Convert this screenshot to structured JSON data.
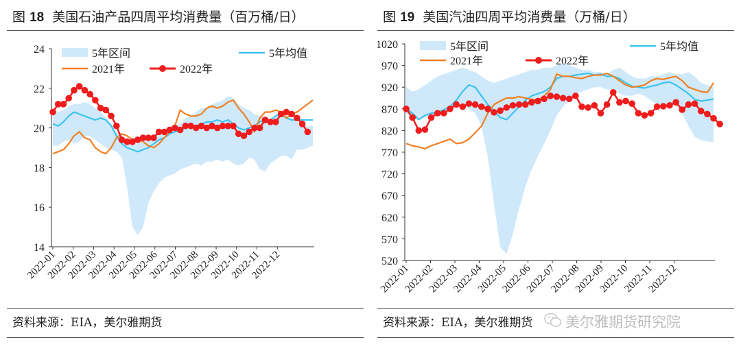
{
  "watermark": {
    "text": "美尔雅期货研究院",
    "icon": "wechat-icon"
  },
  "colors": {
    "band": "#cfe9fb",
    "avg": "#3cc3f0",
    "y2021": "#f07f22",
    "y2022": "#ee1c1c"
  },
  "panels": [
    {
      "figure_label": "图",
      "figure_number": "18",
      "title": "美国石油产品四周平均消费量（百万桶/日）",
      "source": "资料来源：EIA，美尔雅期货",
      "chart_data": {
        "type": "line",
        "x_ticks": [
          "2022-01",
          "2022-02",
          "2022-03",
          "2022-04",
          "2022-05",
          "2022-06",
          "2022-07",
          "2022-08",
          "2022-09",
          "2022-10",
          "2022-11",
          "2022-12"
        ],
        "ylim": [
          14,
          24
        ],
        "y_ticks": [
          14,
          16,
          18,
          20,
          22,
          24
        ],
        "legend": [
          "5年区间",
          "5年均值",
          "2021年",
          "2022年"
        ],
        "series": [
          {
            "name": "5年区间",
            "kind": "band",
            "lower": [
              19.1,
              19.1,
              19.3,
              19.4,
              19.2,
              19.3,
              19.6,
              19.6,
              19.4,
              19.2,
              19.0,
              18.9,
              18.8,
              18.5,
              17.0,
              15.0,
              14.6,
              15.0,
              16.2,
              16.8,
              17.2,
              17.5,
              17.6,
              17.7,
              17.9,
              18.0,
              18.1,
              18.2,
              18.1,
              18.3,
              18.3,
              18.4,
              18.3,
              18.4,
              18.2,
              18.1,
              18.2,
              18.5,
              18.4,
              17.9,
              17.8,
              18.2,
              18.4,
              18.6,
              18.6,
              18.4,
              18.9,
              18.9,
              19.0,
              19.1
            ],
            "upper": [
              20.9,
              20.8,
              20.9,
              21.1,
              21.2,
              21.2,
              21.3,
              21.2,
              21.0,
              20.8,
              20.5,
              20.2,
              19.8,
              19.6,
              19.4,
              19.3,
              19.2,
              19.4,
              19.5,
              19.7,
              19.8,
              19.9,
              20.1,
              20.1,
              20.2,
              20.5,
              20.6,
              20.8,
              21.0,
              21.0,
              21.2,
              21.3,
              21.4,
              21.6,
              21.5,
              21.2,
              21.0,
              20.9,
              20.7,
              20.6,
              20.5,
              20.4,
              20.5,
              20.7,
              20.6,
              20.5,
              20.3,
              20.2,
              20.1,
              20.1
            ]
          },
          {
            "name": "5年均值",
            "kind": "line",
            "values": [
              20.2,
              20.1,
              20.3,
              20.6,
              20.8,
              20.7,
              20.6,
              20.5,
              20.4,
              20.5,
              20.4,
              20.1,
              19.6,
              19.2,
              19.0,
              18.9,
              18.8,
              18.9,
              19.0,
              19.2,
              19.4,
              19.5,
              19.7,
              19.8,
              19.9,
              20.0,
              20.1,
              20.1,
              20.2,
              20.3,
              20.3,
              20.4,
              20.3,
              20.4,
              20.2,
              20.0,
              19.9,
              20.0,
              20.1,
              20.3,
              20.4,
              20.4,
              20.6,
              20.7,
              20.5,
              20.4,
              20.4,
              20.4,
              20.4,
              20.4
            ]
          },
          {
            "name": "2021年",
            "kind": "line",
            "values": [
              18.7,
              18.8,
              18.9,
              19.2,
              19.6,
              19.8,
              19.5,
              19.4,
              19.0,
              18.8,
              18.7,
              19.0,
              19.5,
              19.7,
              19.6,
              19.4,
              19.5,
              19.3,
              19.1,
              19.0,
              19.2,
              19.5,
              19.8,
              20.1,
              20.9,
              20.7,
              20.6,
              20.6,
              20.7,
              21.0,
              21.1,
              21.0,
              21.1,
              21.3,
              21.4,
              21.0,
              20.7,
              20.3,
              19.8,
              20.5,
              20.8,
              20.8,
              20.9,
              20.8,
              20.5,
              20.7,
              20.8,
              21.0,
              21.2,
              21.4
            ]
          },
          {
            "name": "2022年",
            "kind": "marker-line",
            "values": [
              20.8,
              21.2,
              21.2,
              21.5,
              21.9,
              22.1,
              21.9,
              21.7,
              21.4,
              21.0,
              20.9,
              20.6,
              20.1,
              19.4,
              19.3,
              19.3,
              19.4,
              19.5,
              19.5,
              19.5,
              19.8,
              19.8,
              19.9,
              20.0,
              19.9,
              20.1,
              20.1,
              20.0,
              20.1,
              20.0,
              20.1,
              20.0,
              20.1,
              20.1,
              20.1,
              19.7,
              19.6,
              19.8,
              20.0,
              20.0,
              20.4,
              20.3,
              20.3,
              20.7,
              20.8,
              20.7,
              20.5,
              20.2,
              19.8
            ]
          }
        ]
      }
    },
    {
      "figure_label": "图",
      "figure_number": "19",
      "title": "美国汽油四周平均消费量（万桶/日）",
      "source": "资料来源：EIA，美尔雅期货",
      "chart_data": {
        "type": "line",
        "x_ticks": [
          "2022-01",
          "2022-02",
          "2022-03",
          "2022-04",
          "2022-05",
          "2022-06",
          "2022-07",
          "2022-08",
          "2022-09",
          "2022-10",
          "2022-11",
          "2022-12"
        ],
        "ylim": [
          520,
          1020
        ],
        "y_ticks": [
          520,
          570,
          620,
          670,
          720,
          770,
          820,
          870,
          920,
          970,
          1020
        ],
        "legend": [
          "5年区间",
          "5年均值",
          "2021年",
          "2022年"
        ],
        "series": [
          {
            "name": "5年区间",
            "kind": "band",
            "lower": [
              860,
              845,
              845,
              850,
              855,
              860,
              865,
              870,
              875,
              880,
              870,
              860,
              830,
              760,
              650,
              550,
              535,
              580,
              640,
              690,
              730,
              760,
              790,
              820,
              855,
              875,
              890,
              905,
              910,
              915,
              920,
              920,
              915,
              915,
              905,
              900,
              900,
              905,
              900,
              890,
              880,
              880,
              885,
              880,
              860,
              830,
              805,
              798,
              795,
              793
            ],
            "upper": [
              920,
              910,
              915,
              925,
              935,
              945,
              950,
              955,
              960,
              965,
              960,
              955,
              945,
              935,
              930,
              935,
              940,
              945,
              950,
              955,
              960,
              960,
              965,
              965,
              970,
              975,
              970,
              965,
              960,
              960,
              955,
              955,
              950,
              960,
              965,
              955,
              945,
              940,
              940,
              945,
              945,
              950,
              955,
              950,
              950,
              955,
              945,
              930,
              925,
              920
            ]
          },
          {
            "name": "5年均值",
            "kind": "line",
            "values": [
              870,
              860,
              845,
              855,
              860,
              862,
              868,
              875,
              890,
              910,
              925,
              920,
              900,
              880,
              865,
              850,
              845,
              860,
              875,
              890,
              900,
              905,
              910,
              920,
              940,
              945,
              945,
              948,
              950,
              952,
              948,
              950,
              945,
              945,
              940,
              930,
              922,
              920,
              918,
              922,
              925,
              930,
              932,
              925,
              915,
              905,
              892,
              888,
              890,
              893
            ]
          },
          {
            "name": "2021年",
            "kind": "line",
            "values": [
              790,
              785,
              782,
              778,
              785,
              790,
              795,
              800,
              790,
              792,
              800,
              815,
              830,
              860,
              880,
              888,
              895,
              895,
              898,
              895,
              892,
              890,
              900,
              915,
              950,
              945,
              945,
              942,
              940,
              945,
              948,
              948,
              952,
              945,
              935,
              925,
              920,
              922,
              925,
              935,
              940,
              938,
              942,
              945,
              935,
              920,
              915,
              910,
              908,
              930
            ]
          },
          {
            "name": "2022年",
            "kind": "marker-line",
            "values": [
              870,
              850,
              820,
              822,
              850,
              860,
              860,
              870,
              880,
              875,
              882,
              880,
              875,
              870,
              862,
              866,
              873,
              878,
              880,
              880,
              885,
              888,
              893,
              900,
              898,
              895,
              893,
              900,
              875,
              873,
              878,
              860,
              880,
              908,
              885,
              888,
              882,
              860,
              855,
              860,
              875,
              876,
              878,
              885,
              868,
              880,
              882,
              865,
              858,
              848,
              835
            ]
          }
        ]
      }
    }
  ]
}
